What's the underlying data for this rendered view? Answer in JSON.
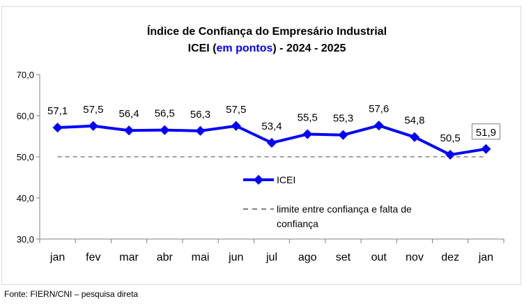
{
  "chart_data": {
    "type": "line",
    "title_line1": "Índice de Confiança do Empresário Industrial",
    "title_line2_prefix": "ICEI (",
    "title_line2_highlight": "em pontos",
    "title_line2_suffix": ") - 2024 - 2025",
    "highlight_color": "#0000ff",
    "categories": [
      "jan",
      "fev",
      "mar",
      "abr",
      "mai",
      "jun",
      "jul",
      "ago",
      "set",
      "out",
      "nov",
      "dez",
      "jan"
    ],
    "series": [
      {
        "name": "ICEI",
        "color": "#0000ff",
        "values": [
          57.1,
          57.5,
          56.4,
          56.5,
          56.3,
          57.5,
          53.4,
          55.5,
          55.3,
          57.6,
          54.8,
          50.5,
          51.9
        ],
        "labels": [
          "57,1",
          "57,5",
          "56,4",
          "56,5",
          "56,3",
          "57,5",
          "53,4",
          "55,5",
          "55,3",
          "57,6",
          "54,8",
          "50,5",
          "51,9"
        ]
      }
    ],
    "threshold": {
      "name": "limite entre confiança e falta de confiança",
      "name_line1": "limite entre confiança e falta de",
      "name_line2": "confiança",
      "value": 50,
      "color": "#808080",
      "style": "dashed"
    },
    "ylim": [
      30,
      70
    ],
    "yticks": [
      30,
      40,
      50,
      60,
      70
    ],
    "ytick_labels": [
      "30,0",
      "40,0",
      "50,0",
      "60,0",
      "70,0"
    ],
    "grid": false,
    "legend": "center-inside"
  },
  "source": "Fonte: FIERN/CNI – pesquisa direta"
}
